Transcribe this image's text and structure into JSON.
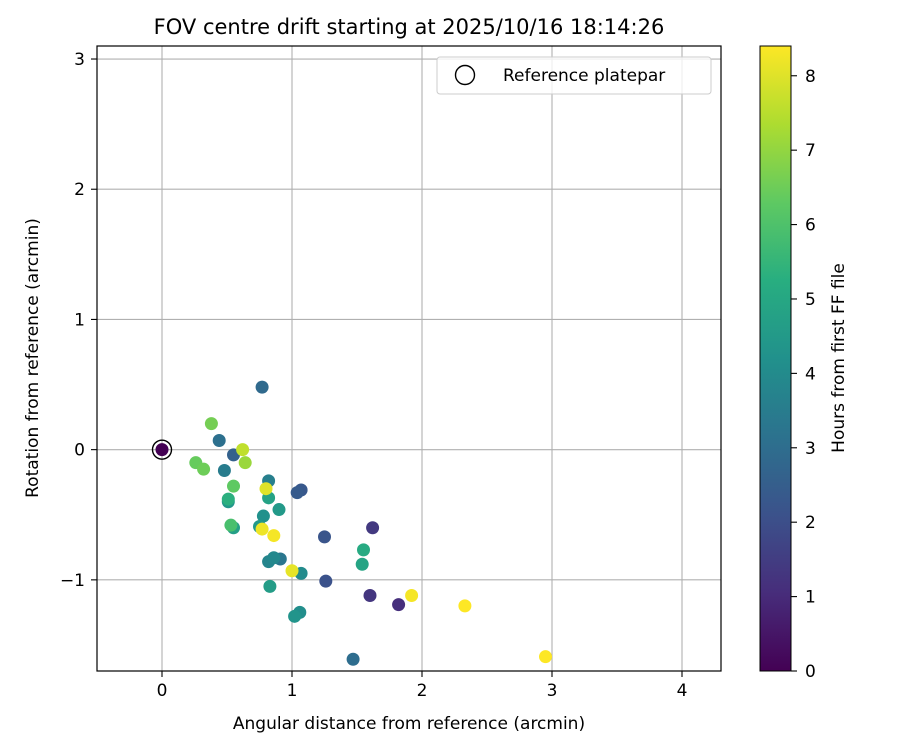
{
  "chart_data": {
    "type": "scatter",
    "title": "FOV centre drift starting at 2025/10/16 18:14:26",
    "xlabel": "Angular distance from reference (arcmin)",
    "ylabel": "Rotation from reference (arcmin)",
    "xlim": [
      -0.5,
      4.3
    ],
    "ylim": [
      -1.7,
      3.1
    ],
    "xticks": [
      0,
      1,
      2,
      3,
      4
    ],
    "yticks": [
      -1,
      0,
      1,
      2,
      3
    ],
    "xtick_labels": [
      "0",
      "1",
      "2",
      "3",
      "4"
    ],
    "ytick_labels": [
      "−1",
      "0",
      "1",
      "2",
      "3"
    ],
    "grid": true,
    "legend": {
      "label": "Reference platepar",
      "position": "upper right"
    },
    "reference_point": {
      "x": 0,
      "y": 0,
      "hours": 0
    },
    "colorbar": {
      "label": "Hours from first FF file",
      "colormap": "viridis",
      "range": [
        0,
        8.4
      ],
      "ticks": [
        0,
        1,
        2,
        3,
        4,
        5,
        6,
        7,
        8
      ],
      "tick_labels": [
        "0",
        "1",
        "2",
        "3",
        "4",
        "5",
        "6",
        "7",
        "8"
      ]
    },
    "points": [
      {
        "x": 1.82,
        "y": -1.19,
        "hours": 1.1
      },
      {
        "x": 1.6,
        "y": -1.12,
        "hours": 1.3
      },
      {
        "x": 1.62,
        "y": -0.6,
        "hours": 1.4
      },
      {
        "x": 1.26,
        "y": -1.01,
        "hours": 2.1
      },
      {
        "x": 1.25,
        "y": -0.67,
        "hours": 2.2
      },
      {
        "x": 1.07,
        "y": -0.31,
        "hours": 2.3
      },
      {
        "x": 1.04,
        "y": -0.33,
        "hours": 2.4
      },
      {
        "x": 0.55,
        "y": -0.04,
        "hours": 2.6
      },
      {
        "x": 0.77,
        "y": 0.48,
        "hours": 2.9
      },
      {
        "x": 1.47,
        "y": -1.61,
        "hours": 3.0
      },
      {
        "x": 0.44,
        "y": 0.07,
        "hours": 3.1
      },
      {
        "x": 0.91,
        "y": -0.84,
        "hours": 3.3
      },
      {
        "x": 0.48,
        "y": -0.16,
        "hours": 3.5
      },
      {
        "x": 0.82,
        "y": -0.24,
        "hours": 3.6
      },
      {
        "x": 0.82,
        "y": -0.86,
        "hours": 3.8
      },
      {
        "x": 0.86,
        "y": -0.83,
        "hours": 3.9
      },
      {
        "x": 1.07,
        "y": -0.95,
        "hours": 4.0
      },
      {
        "x": 1.06,
        "y": -1.25,
        "hours": 4.1
      },
      {
        "x": 0.78,
        "y": -0.51,
        "hours": 4.2
      },
      {
        "x": 1.02,
        "y": -1.28,
        "hours": 4.3
      },
      {
        "x": 0.51,
        "y": -0.4,
        "hours": 4.4
      },
      {
        "x": 0.75,
        "y": -0.59,
        "hours": 4.5
      },
      {
        "x": 0.9,
        "y": -0.46,
        "hours": 4.5
      },
      {
        "x": 0.83,
        "y": -1.05,
        "hours": 4.6
      },
      {
        "x": 0.55,
        "y": -0.6,
        "hours": 4.7
      },
      {
        "x": 0.82,
        "y": -0.37,
        "hours": 4.8
      },
      {
        "x": 1.54,
        "y": -0.88,
        "hours": 4.9
      },
      {
        "x": 1.55,
        "y": -0.77,
        "hours": 5.1
      },
      {
        "x": 0.51,
        "y": -0.38,
        "hours": 5.3
      },
      {
        "x": 0.53,
        "y": -0.58,
        "hours": 5.9
      },
      {
        "x": 0.55,
        "y": -0.28,
        "hours": 6.3
      },
      {
        "x": 0.26,
        "y": -0.1,
        "hours": 6.4
      },
      {
        "x": 0.32,
        "y": -0.15,
        "hours": 6.5
      },
      {
        "x": 0.38,
        "y": 0.2,
        "hours": 6.6
      },
      {
        "x": 0.64,
        "y": -0.1,
        "hours": 7.1
      },
      {
        "x": 0.62,
        "y": 0.0,
        "hours": 7.6
      },
      {
        "x": 0.8,
        "y": -0.3,
        "hours": 8.0
      },
      {
        "x": 1.0,
        "y": -0.93,
        "hours": 8.1
      },
      {
        "x": 0.77,
        "y": -0.61,
        "hours": 8.2
      },
      {
        "x": 0.86,
        "y": -0.66,
        "hours": 8.3
      },
      {
        "x": 1.92,
        "y": -1.12,
        "hours": 8.3
      },
      {
        "x": 2.33,
        "y": -1.2,
        "hours": 8.4
      },
      {
        "x": 2.95,
        "y": -1.59,
        "hours": 8.4
      }
    ]
  }
}
